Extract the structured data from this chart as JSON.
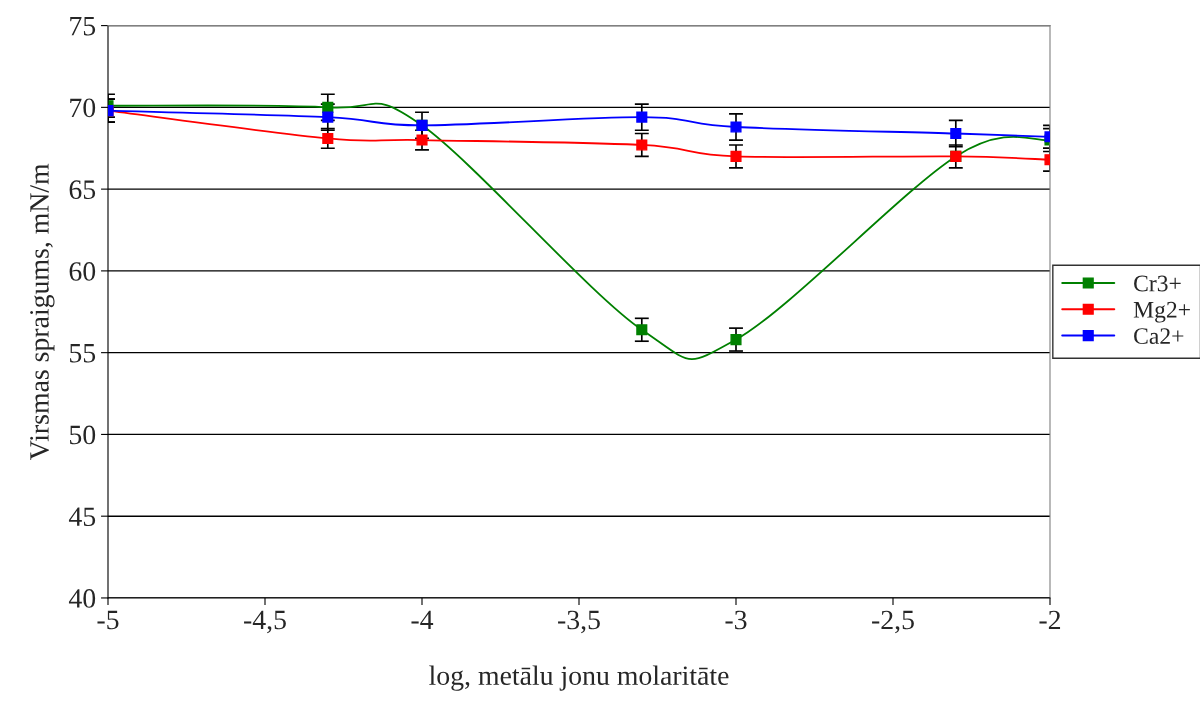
{
  "chart_data": {
    "type": "line",
    "xlabel": "log, metālu jonu molaritāte",
    "ylabel": "Virsmas spraigums, mN/m",
    "x": [
      -5,
      -4.3,
      -4,
      -3.3,
      -3,
      -2.3,
      -2
    ],
    "xlim": [
      -5,
      -2
    ],
    "xticks": [
      {
        "value": -5,
        "label": "-5"
      },
      {
        "value": -4.5,
        "label": "-4,5"
      },
      {
        "value": -4,
        "label": "-4"
      },
      {
        "value": -3.5,
        "label": "-3,5"
      },
      {
        "value": -3,
        "label": "-3"
      },
      {
        "value": -2.5,
        "label": "-2,5"
      },
      {
        "value": -2,
        "label": "-2"
      }
    ],
    "ylim": [
      40,
      75
    ],
    "yticks": [
      40,
      45,
      50,
      55,
      60,
      65,
      70,
      75
    ],
    "grid": "y",
    "legend": "right",
    "marker": "square",
    "line_style": "solid",
    "series": [
      {
        "name": "Cr3+",
        "color": "#008000",
        "values": [
          70.1,
          70.0,
          68.9,
          56.4,
          55.8,
          67.0,
          68.0
        ],
        "errors": [
          0.7,
          0.8,
          null,
          0.7,
          0.7,
          null,
          0.7
        ]
      },
      {
        "name": "Mg2+",
        "color": "#ff0000",
        "values": [
          69.8,
          68.1,
          68.0,
          67.7,
          67.0,
          67.0,
          66.8
        ],
        "errors": [
          0.7,
          0.6,
          0.6,
          0.7,
          0.7,
          0.7,
          0.7
        ]
      },
      {
        "name": "Ca2+",
        "color": "#0000ff",
        "values": [
          69.8,
          69.4,
          68.9,
          69.4,
          68.8,
          68.4,
          68.2
        ],
        "errors": [
          0.7,
          0.8,
          0.8,
          0.8,
          0.8,
          0.8,
          0.7
        ]
      }
    ]
  }
}
